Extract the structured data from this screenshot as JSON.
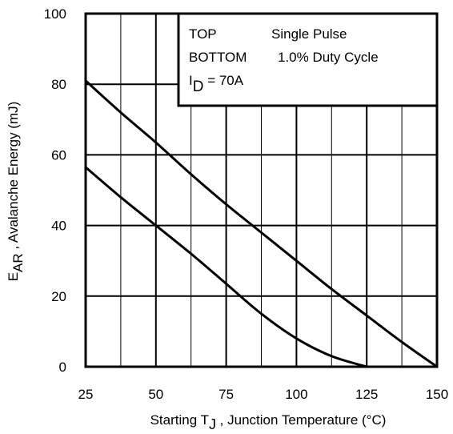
{
  "chart_data": {
    "type": "line",
    "xlim": [
      25,
      150
    ],
    "ylim": [
      0,
      100
    ],
    "x_ticks": [
      "25",
      "50",
      "75",
      "100",
      "125",
      "150"
    ],
    "y_ticks": [
      "0",
      "20",
      "40",
      "60",
      "80",
      "100"
    ],
    "grid": true,
    "grid_x_step": 12.5,
    "grid_y_step": 20,
    "xlabel": {
      "prefix": "Starting T",
      "subscript": "J",
      "suffix": " , Junction Temperature (°C)"
    },
    "ylabel": {
      "prefix": "E",
      "subscript": "AR",
      "suffix": " , Avalanche Energy (mJ)"
    },
    "legend": {
      "placement": "top-right",
      "lines": [
        {
          "key": "TOP",
          "value": "Single Pulse"
        },
        {
          "key": "BOTTOM",
          "value": "1.0% Duty Cycle"
        }
      ],
      "condition": {
        "prefix": "I",
        "subscript": "D",
        "suffix": " = 70A"
      }
    },
    "series": [
      {
        "label": "TOP",
        "x": [
          25,
          37.5,
          50,
          62.5,
          75,
          87.5,
          100,
          112.5,
          125,
          137.5,
          150
        ],
        "y": [
          81,
          72,
          63.5,
          54.5,
          46,
          38,
          30,
          22,
          14.5,
          7,
          0
        ]
      },
      {
        "label": "BOTTOM",
        "x": [
          25,
          37.5,
          50,
          62.5,
          75,
          87.5,
          100,
          112.5,
          125
        ],
        "y": [
          56.5,
          48,
          40,
          32,
          23.5,
          15,
          8,
          3,
          0
        ]
      }
    ]
  }
}
